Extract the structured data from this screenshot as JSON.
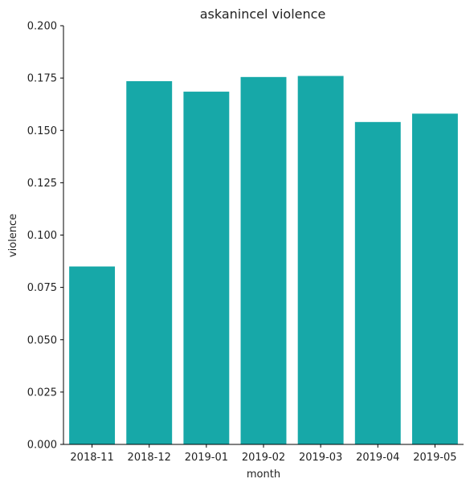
{
  "chart_data": {
    "type": "bar",
    "title": "askanincel violence",
    "xlabel": "month",
    "ylabel": "violence",
    "categories": [
      "2018-11",
      "2018-12",
      "2019-01",
      "2019-02",
      "2019-03",
      "2019-04",
      "2019-05"
    ],
    "values": [
      0.085,
      0.1735,
      0.1685,
      0.1755,
      0.176,
      0.154,
      0.158
    ],
    "ylim": [
      0,
      0.2
    ],
    "yticks": [
      "0.000",
      "0.025",
      "0.050",
      "0.075",
      "0.100",
      "0.125",
      "0.150",
      "0.175",
      "0.200"
    ],
    "bar_color": "#17a8a8",
    "grid": false,
    "legend": "none"
  }
}
